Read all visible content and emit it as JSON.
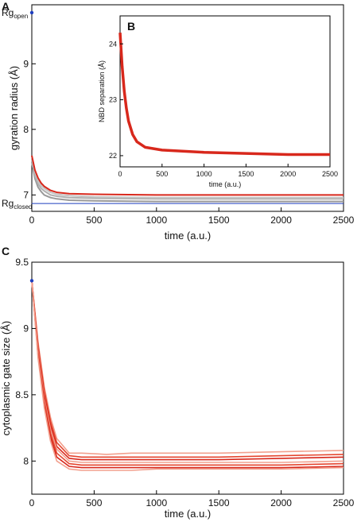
{
  "chart_data": [
    {
      "panel": "A",
      "type": "line",
      "title": "",
      "xlabel": "time (a.u.)",
      "ylabel": "gyration radius (Å)",
      "xlim": [
        0,
        2500
      ],
      "ylim": [
        6.75,
        9.9
      ],
      "x_ticks": [
        "0",
        "500",
        "1000",
        "1500",
        "2000",
        "2500"
      ],
      "y_ticks": [
        "7",
        "8",
        "9"
      ],
      "reference_lines": [
        {
          "label_main": "Rg",
          "label_sub": "open",
          "y": 9.78,
          "color": "#1f3fbf"
        },
        {
          "label_main": "Rg",
          "label_sub": "closed",
          "y": 6.87,
          "color": "#1f3fbf"
        }
      ],
      "start_point": {
        "x": 0,
        "y": 9.78
      },
      "series": [
        {
          "values_x": [
            0,
            25,
            50,
            75,
            100,
            150,
            200,
            300,
            500,
            1000,
            1500,
            2000,
            2500
          ],
          "values_y": [
            7.5,
            7.25,
            7.12,
            7.05,
            7.0,
            6.96,
            6.94,
            6.92,
            6.91,
            6.9,
            6.9,
            6.9,
            6.9
          ],
          "color": "#9a9a9a"
        },
        {
          "values_x": [
            0,
            25,
            50,
            75,
            100,
            150,
            200,
            300,
            500,
            1000,
            1500,
            2000,
            2500
          ],
          "values_y": [
            7.55,
            7.3,
            7.17,
            7.1,
            7.06,
            7.0,
            6.98,
            6.96,
            6.95,
            6.94,
            6.94,
            6.94,
            6.94
          ],
          "color": "#b0b0b0"
        },
        {
          "values_x": [
            0,
            25,
            50,
            75,
            100,
            150,
            200,
            300,
            500,
            1000,
            1500,
            2000,
            2500
          ],
          "values_y": [
            7.6,
            7.35,
            7.22,
            7.14,
            7.1,
            7.04,
            7.01,
            6.99,
            6.97,
            6.96,
            6.96,
            6.96,
            6.96
          ],
          "color": "#c4c4c4"
        },
        {
          "values_x": [
            0,
            25,
            50,
            75,
            100,
            150,
            200,
            300,
            500,
            1000,
            1500,
            2000,
            2500
          ],
          "values_y": [
            7.6,
            7.38,
            7.26,
            7.18,
            7.13,
            7.07,
            7.04,
            7.02,
            7.01,
            7.0,
            7.0,
            7.0,
            7.0
          ],
          "color": "#d8281c"
        }
      ],
      "inset": {
        "panel": "B",
        "type": "line",
        "title": "",
        "xlabel": "time (a.u.)",
        "ylabel": "NBD separation (Å)",
        "xlim": [
          0,
          2500
        ],
        "ylim": [
          21.8,
          24.5
        ],
        "x_ticks": [
          "0",
          "500",
          "1000",
          "1500",
          "2000",
          "2500"
        ],
        "y_ticks": [
          "22",
          "23",
          "24"
        ],
        "series": [
          {
            "values_x": [
              0,
              25,
              50,
              75,
              100,
              150,
              200,
              300,
              500,
              1000,
              1500,
              2000,
              2500
            ],
            "values_y": [
              24.2,
              23.6,
              23.15,
              22.85,
              22.62,
              22.38,
              22.25,
              22.15,
              22.1,
              22.06,
              22.04,
              22.02,
              22.02
            ],
            "color": "#d8281c"
          }
        ]
      }
    },
    {
      "panel": "C",
      "type": "line",
      "title": "",
      "xlabel": "time (a.u.)",
      "ylabel": "cytoplasmic gate size (Å)",
      "xlim": [
        0,
        2500
      ],
      "ylim": [
        7.75,
        9.5
      ],
      "x_ticks": [
        "0",
        "500",
        "1000",
        "1500",
        "2000",
        "2500"
      ],
      "y_ticks": [
        "8",
        "8.5",
        "9",
        "9.5"
      ],
      "start_point": {
        "x": 0,
        "y": 9.36
      },
      "series": [
        {
          "values_x": [
            0,
            50,
            100,
            150,
            200,
            300,
            400,
            600,
            800,
            1000,
            1500,
            2000,
            2500
          ],
          "values_y": [
            9.36,
            8.9,
            8.56,
            8.33,
            8.17,
            8.06,
            8.06,
            8.05,
            8.06,
            8.06,
            8.06,
            8.07,
            8.08
          ],
          "color": "#f2a08e"
        },
        {
          "values_x": [
            0,
            50,
            100,
            150,
            200,
            300,
            400,
            600,
            800,
            1000,
            1500,
            2000,
            2500
          ],
          "values_y": [
            9.36,
            8.88,
            8.53,
            8.3,
            8.14,
            8.04,
            8.03,
            8.03,
            8.03,
            8.03,
            8.03,
            8.04,
            8.05
          ],
          "color": "#e4462f"
        },
        {
          "values_x": [
            0,
            50,
            100,
            150,
            200,
            300,
            400,
            600,
            800,
            1000,
            1500,
            2000,
            2500
          ],
          "values_y": [
            9.36,
            8.86,
            8.5,
            8.27,
            8.11,
            8.02,
            8.01,
            8.01,
            8.01,
            8.01,
            8.01,
            8.02,
            8.03
          ],
          "color": "#d8281c"
        },
        {
          "values_x": [
            0,
            50,
            100,
            150,
            200,
            300,
            400,
            600,
            800,
            1000,
            1500,
            2000,
            2500
          ],
          "values_y": [
            9.36,
            8.84,
            8.47,
            8.24,
            8.09,
            8.0,
            7.99,
            7.99,
            7.99,
            7.99,
            7.99,
            7.99,
            8.0
          ],
          "color": "#f2a08e"
        },
        {
          "values_x": [
            0,
            50,
            100,
            150,
            200,
            300,
            400,
            600,
            800,
            1000,
            1500,
            2000,
            2500
          ],
          "values_y": [
            9.36,
            8.82,
            8.45,
            8.21,
            8.06,
            7.98,
            7.97,
            7.97,
            7.97,
            7.97,
            7.97,
            7.97,
            7.98
          ],
          "color": "#e4462f"
        },
        {
          "values_x": [
            0,
            50,
            100,
            150,
            200,
            300,
            400,
            600,
            800,
            1000,
            1500,
            2000,
            2500
          ],
          "values_y": [
            9.36,
            8.8,
            8.42,
            8.18,
            8.03,
            7.96,
            7.95,
            7.95,
            7.95,
            7.95,
            7.95,
            7.95,
            7.96
          ],
          "color": "#d8281c"
        },
        {
          "values_x": [
            0,
            50,
            100,
            150,
            200,
            300,
            400,
            600,
            800,
            1000,
            1500,
            2000,
            2500
          ],
          "values_y": [
            9.36,
            8.78,
            8.4,
            8.15,
            8.0,
            7.94,
            7.93,
            7.93,
            7.93,
            7.94,
            7.94,
            7.94,
            7.95
          ],
          "color": "#f2a08e"
        }
      ]
    }
  ]
}
